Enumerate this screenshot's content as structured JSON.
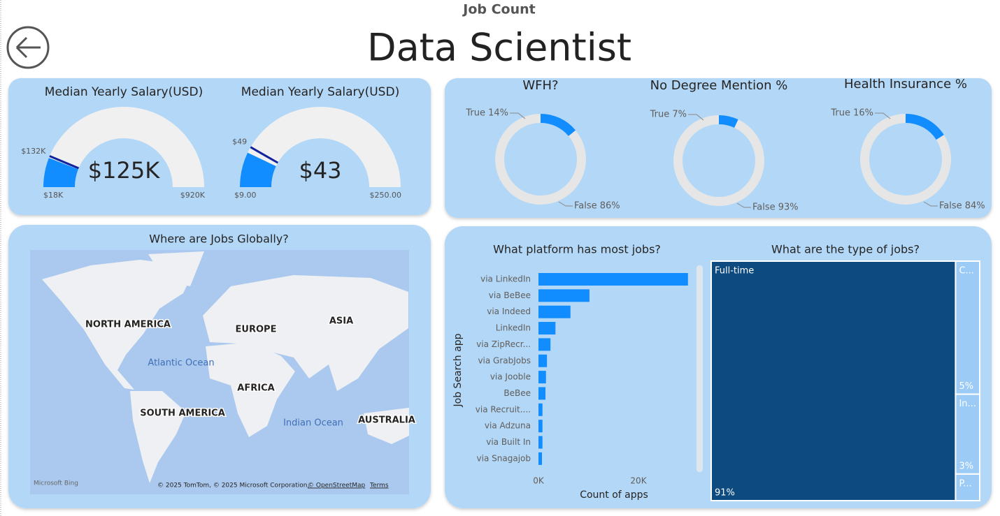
{
  "header": {
    "subtitle": "Job Count",
    "title": "Data Scientist"
  },
  "chart_data": [
    {
      "type": "gauge",
      "title": "Median Yearly Salary(USD)",
      "value": 125000,
      "value_label": "$125K",
      "ylim": [
        18000,
        920000
      ],
      "yticks": [
        {
          "value": 18000,
          "label": "$18K"
        },
        {
          "value": 920000,
          "label": "$920K"
        }
      ],
      "target": 132000,
      "target_label": "$132K",
      "color": "#118dff"
    },
    {
      "type": "gauge",
      "title": "Median Yearly Salary(USD)",
      "value": 43,
      "value_label": "$43",
      "ylim": [
        9,
        250
      ],
      "yticks": [
        {
          "value": 9,
          "label": "$9.00"
        },
        {
          "value": 250,
          "label": "$250.00"
        }
      ],
      "target": 49,
      "target_label": "$49",
      "color": "#118dff"
    },
    {
      "type": "donut",
      "title": "WFH?",
      "values": [
        14,
        86
      ],
      "value_labels": [
        "True 14%",
        "False 86%"
      ],
      "colors": [
        "#118dff",
        "#e6e6e6"
      ]
    },
    {
      "type": "donut",
      "title": "No Degree Mention %",
      "values": [
        7,
        93
      ],
      "value_labels": [
        "True 7%",
        "False 93%"
      ],
      "colors": [
        "#118dff",
        "#e6e6e6"
      ]
    },
    {
      "type": "donut",
      "title": "Health Insurance %",
      "values": [
        16,
        84
      ],
      "value_labels": [
        "True 16%",
        "False 84%"
      ],
      "colors": [
        "#118dff",
        "#e6e6e6"
      ]
    },
    {
      "type": "bar",
      "title": "What platform has most jobs?",
      "xlabel": "Count of apps",
      "ylabel": "Job Search app",
      "categories": [
        "via LinkedIn",
        "via BeBee",
        "via Indeed",
        "LinkedIn",
        "via ZipRecr...",
        "via GrabJobs",
        "via Jooble",
        "BeBee",
        "via Recruit....",
        "via Adzuna",
        "via Built In",
        "via Snagajob"
      ],
      "values": [
        29900,
        10200,
        6400,
        3400,
        2400,
        1700,
        1500,
        1400,
        800,
        800,
        800,
        700
      ],
      "color": "#118dff",
      "xlim": [
        0,
        30000
      ],
      "xticks": [
        {
          "value": 0,
          "label": "0K"
        },
        {
          "value": 20000,
          "label": "20K"
        }
      ]
    },
    {
      "type": "treemap",
      "title": "What are the type of jobs?",
      "categories": [
        "Full-time",
        "C...",
        "In...",
        "P..."
      ],
      "values": [
        91,
        5,
        3,
        1
      ],
      "value_labels": [
        "91%",
        "5%",
        "3%",
        null
      ],
      "colors": [
        "#0c4a80",
        "#9ccbf6",
        "#9ccbf6",
        "#9ccbf6"
      ]
    }
  ],
  "map": {
    "title": "Where are Jobs Globally?",
    "continents": [
      "NORTH AMERICA",
      "EUROPE",
      "ASIA",
      "AFRICA",
      "SOUTH AMERICA",
      "AUSTRALIA"
    ],
    "oceans": [
      "Atlantic Ocean",
      "Indian Ocean"
    ],
    "logo": "Microsoft Bing",
    "attribution": "© 2025 TomTom, © 2025 Microsoft Corporation,",
    "osm": "© OpenStreetMap",
    "terms": "Terms"
  }
}
